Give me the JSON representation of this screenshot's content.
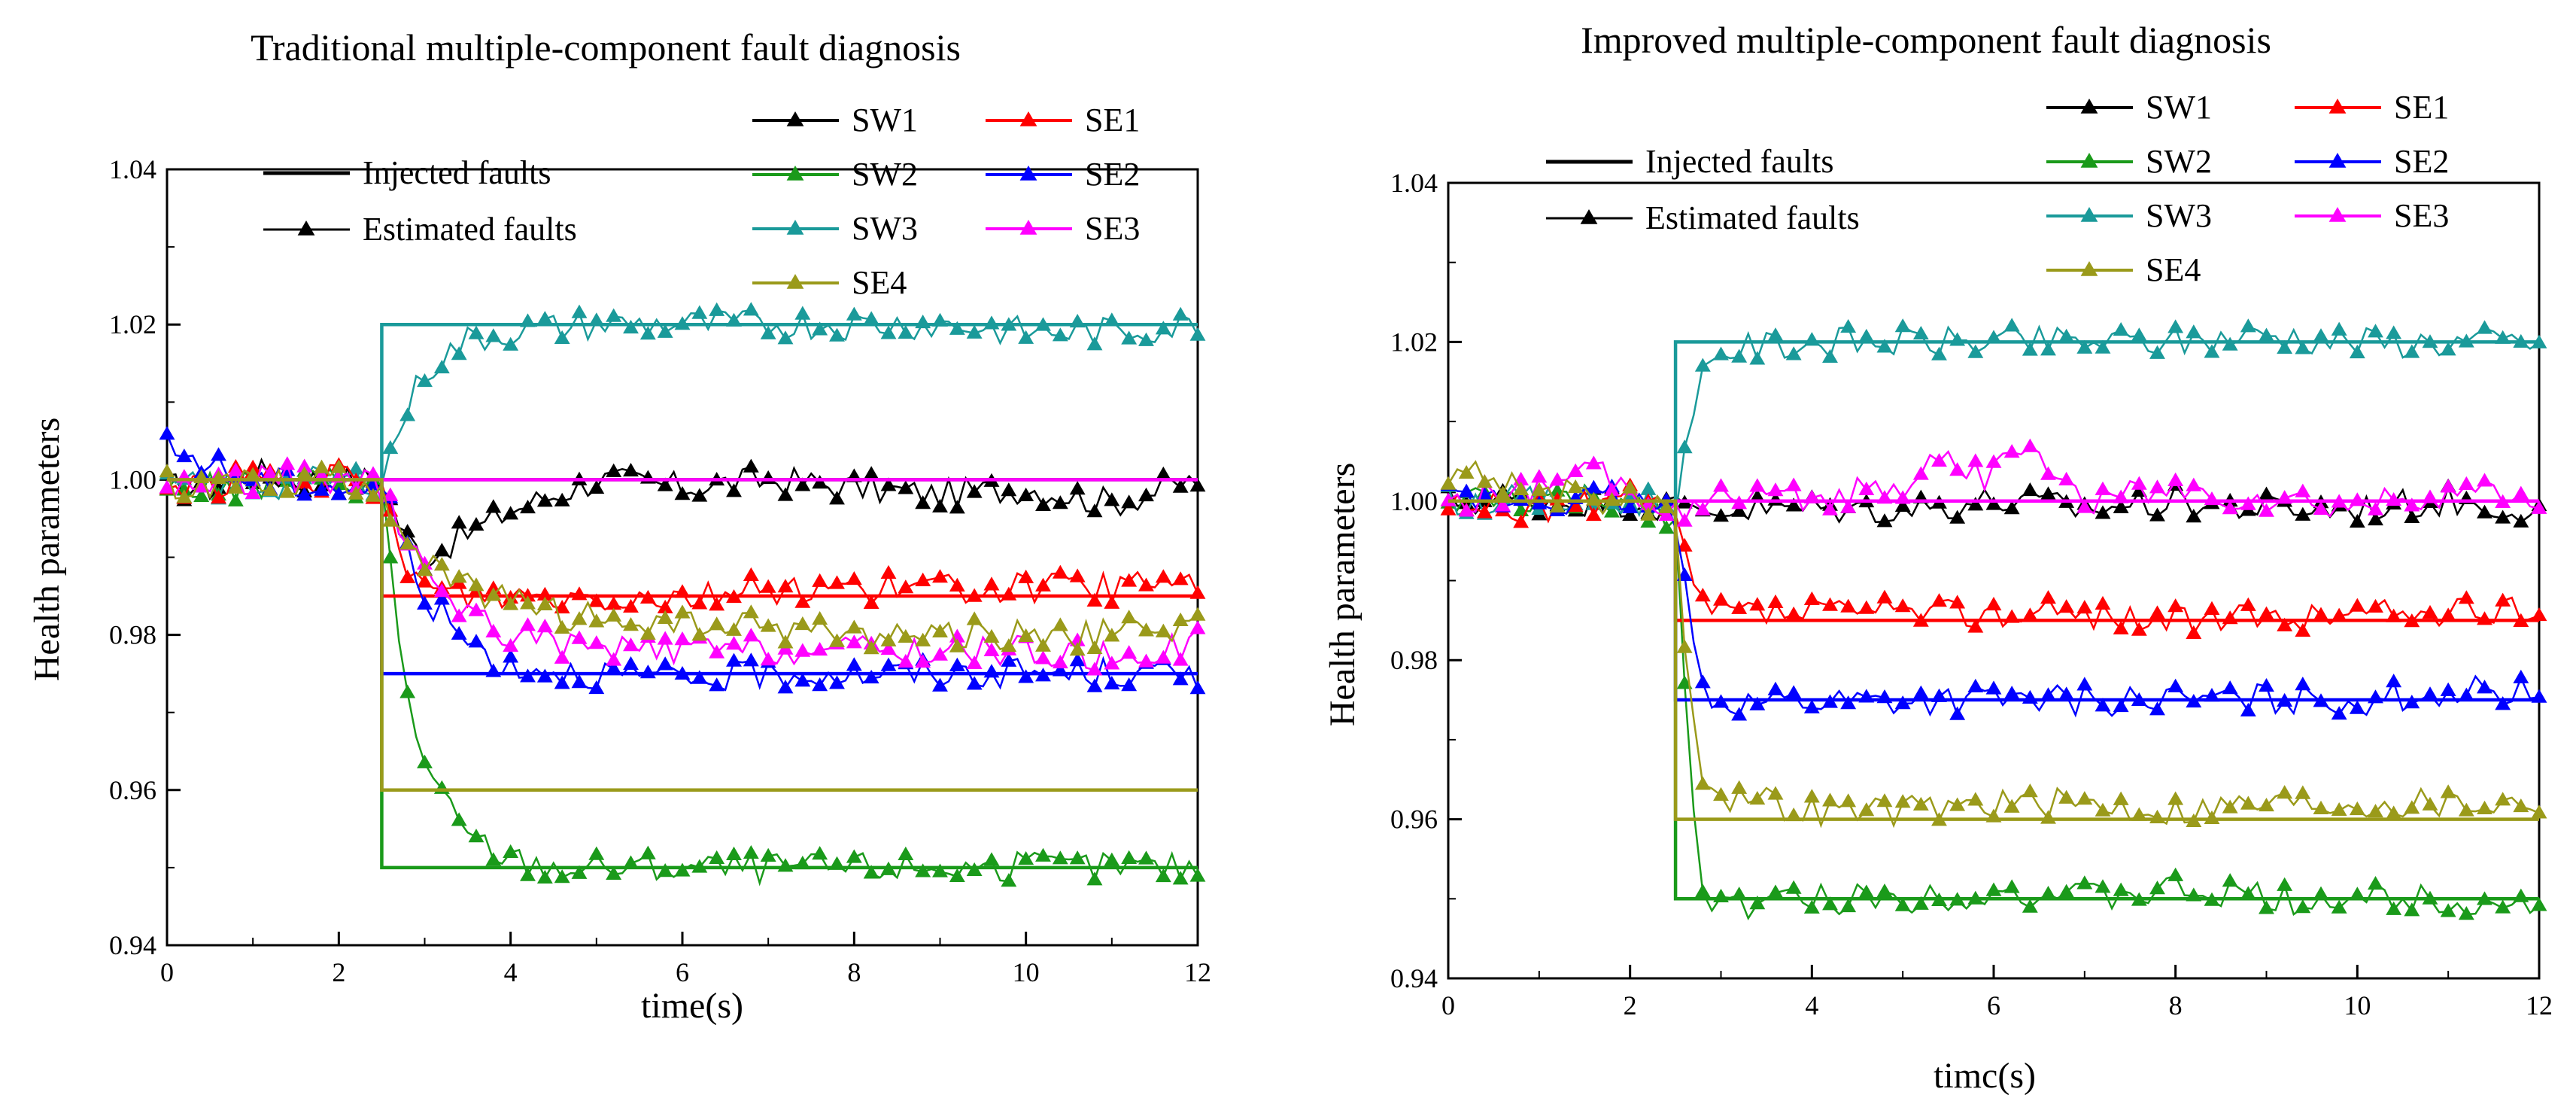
{
  "chart_data": [
    {
      "type": "line",
      "title": "Traditional multiple-component fault diagnosis",
      "xlabel": "time(s)",
      "ylabel": "Health parameters",
      "xlim": [
        0,
        12
      ],
      "ylim": [
        0.94,
        1.04
      ],
      "xticks": [
        "0",
        "2",
        "4",
        "6",
        "8",
        "10",
        "12"
      ],
      "yticks": [
        "0.94",
        "0.96",
        "0.98",
        "1.00",
        "1.02",
        "1.04"
      ],
      "legend_style": {
        "injected": "Injected faults",
        "estimated": "Estimated faults"
      },
      "fault_time": 2.5,
      "series": [
        {
          "name": "SW1",
          "color": "#000000",
          "before": 1.0,
          "after": 1.0,
          "estimate": [
            [
              0,
              0.999
            ],
            [
              0.5,
              0.999
            ],
            [
              1,
              1.001
            ],
            [
              1.5,
              1.0
            ],
            [
              2,
              1.0
            ],
            [
              2.5,
              1.0
            ],
            [
              2.75,
              0.993
            ],
            [
              3,
              0.99
            ],
            [
              3.5,
              0.993
            ],
            [
              4,
              0.996
            ],
            [
              4.5,
              0.998
            ],
            [
              5,
              1.0
            ],
            [
              6,
              0.999
            ],
            [
              7,
              1.0
            ],
            [
              8,
              0.999
            ],
            [
              9,
              0.998
            ],
            [
              10,
              0.999
            ],
            [
              11,
              0.997
            ],
            [
              12,
              1.0
            ]
          ]
        },
        {
          "name": "SW2",
          "color": "#1a9a1a",
          "before": 1.0,
          "after": 0.95,
          "estimate": [
            [
              0,
              0.999
            ],
            [
              1,
              0.999
            ],
            [
              2,
              1.0
            ],
            [
              2.5,
              0.999
            ],
            [
              2.75,
              0.975
            ],
            [
              3,
              0.963
            ],
            [
              3.25,
              0.958
            ],
            [
              3.5,
              0.954
            ],
            [
              4,
              0.951
            ],
            [
              4.5,
              0.95
            ],
            [
              5,
              0.95
            ],
            [
              6,
              0.95
            ],
            [
              7,
              0.95
            ],
            [
              8,
              0.95
            ],
            [
              9,
              0.95
            ],
            [
              10,
              0.95
            ],
            [
              11,
              0.95
            ],
            [
              12,
              0.95
            ]
          ]
        },
        {
          "name": "SW3",
          "color": "#1a9a9a",
          "before": 1.0,
          "after": 1.02,
          "estimate": [
            [
              0,
              0.999
            ],
            [
              1,
              0.999
            ],
            [
              2,
              1.0
            ],
            [
              2.5,
              1.0
            ],
            [
              2.75,
              1.008
            ],
            [
              3,
              1.014
            ],
            [
              3.5,
              1.018
            ],
            [
              4,
              1.019
            ],
            [
              5,
              1.02
            ],
            [
              6,
              1.02
            ],
            [
              7,
              1.02
            ],
            [
              8,
              1.02
            ],
            [
              9,
              1.02
            ],
            [
              10,
              1.019
            ],
            [
              11,
              1.019
            ],
            [
              12,
              1.02
            ]
          ]
        },
        {
          "name": "SE1",
          "color": "#ff0000",
          "before": 1.0,
          "after": 0.985,
          "estimate": [
            [
              0,
              0.999
            ],
            [
              1,
              1.0
            ],
            [
              2,
              1.0
            ],
            [
              2.5,
              0.998
            ],
            [
              2.75,
              0.99
            ],
            [
              3,
              0.986
            ],
            [
              3.5,
              0.985
            ],
            [
              4,
              0.985
            ],
            [
              5,
              0.985
            ],
            [
              6,
              0.985
            ],
            [
              7,
              0.986
            ],
            [
              8,
              0.986
            ],
            [
              9,
              0.986
            ],
            [
              10,
              0.986
            ],
            [
              11,
              0.986
            ],
            [
              12,
              0.987
            ]
          ]
        },
        {
          "name": "SE2",
          "color": "#0000ff",
          "before": 1.0,
          "after": 0.975,
          "estimate": [
            [
              0,
              1.004
            ],
            [
              0.5,
              1.002
            ],
            [
              1,
              1.0
            ],
            [
              2,
              0.999
            ],
            [
              2.5,
              0.999
            ],
            [
              2.75,
              0.992
            ],
            [
              3,
              0.985
            ],
            [
              3.5,
              0.979
            ],
            [
              4,
              0.976
            ],
            [
              5,
              0.975
            ],
            [
              6,
              0.974
            ],
            [
              7,
              0.975
            ],
            [
              8,
              0.975
            ],
            [
              9,
              0.975
            ],
            [
              10,
              0.975
            ],
            [
              11,
              0.975
            ],
            [
              12,
              0.975
            ]
          ]
        },
        {
          "name": "SE3",
          "color": "#ff00ff",
          "before": 1.0,
          "after": 1.0,
          "estimate": [
            [
              0,
              0.999
            ],
            [
              1,
              1.0
            ],
            [
              2,
              1.0
            ],
            [
              2.5,
              0.999
            ],
            [
              2.75,
              0.992
            ],
            [
              3,
              0.988
            ],
            [
              3.5,
              0.983
            ],
            [
              4,
              0.98
            ],
            [
              5,
              0.978
            ],
            [
              6,
              0.978
            ],
            [
              7,
              0.978
            ],
            [
              8,
              0.978
            ],
            [
              9,
              0.978
            ],
            [
              10,
              0.978
            ],
            [
              11,
              0.977
            ],
            [
              12,
              0.979
            ]
          ]
        },
        {
          "name": "SE4",
          "color": "#9a9a1a",
          "before": 1.0,
          "after": 0.96,
          "estimate": [
            [
              0,
              0.999
            ],
            [
              1,
              1.0
            ],
            [
              2,
              1.0
            ],
            [
              2.5,
              0.999
            ],
            [
              2.75,
              0.993
            ],
            [
              3,
              0.989
            ],
            [
              3.5,
              0.986
            ],
            [
              4,
              0.984
            ],
            [
              5,
              0.982
            ],
            [
              6,
              0.981
            ],
            [
              7,
              0.981
            ],
            [
              8,
              0.98
            ],
            [
              9,
              0.98
            ],
            [
              10,
              0.98
            ],
            [
              11,
              0.98
            ],
            [
              12,
              0.981
            ]
          ]
        }
      ]
    },
    {
      "type": "line",
      "title": "Improved multiple-component fault diagnosis",
      "xlabel": "timc(s)",
      "ylabel": "Health parameters",
      "xlim": [
        0,
        12
      ],
      "ylim": [
        0.94,
        1.04
      ],
      "xticks": [
        "0",
        "2",
        "4",
        "6",
        "8",
        "10",
        "12"
      ],
      "yticks": [
        "0.94",
        "0.96",
        "0.98",
        "1.00",
        "1.02",
        "1.04"
      ],
      "legend_style": {
        "injected": "Injected faults",
        "estimated": "Estimated faults"
      },
      "fault_time": 2.5,
      "series": [
        {
          "name": "SW1",
          "color": "#000000",
          "before": 1.0,
          "after": 1.0,
          "estimate": [
            [
              0,
              1.0
            ],
            [
              1,
              1.0
            ],
            [
              2,
              1.0
            ],
            [
              2.5,
              0.999
            ],
            [
              3,
              0.999
            ],
            [
              4,
              0.999
            ],
            [
              5,
              0.999
            ],
            [
              6,
              1.0
            ],
            [
              7,
              0.999
            ],
            [
              8,
              1.0
            ],
            [
              9,
              0.999
            ],
            [
              10,
              0.999
            ],
            [
              11,
              1.0
            ],
            [
              12,
              0.999
            ]
          ]
        },
        {
          "name": "SW2",
          "color": "#1a9a1a",
          "before": 1.0,
          "after": 0.95,
          "estimate": [
            [
              0,
              1.0
            ],
            [
              1,
              1.0
            ],
            [
              2,
              1.0
            ],
            [
              2.5,
              0.998
            ],
            [
              2.65,
              0.965
            ],
            [
              2.8,
              0.952
            ],
            [
              3,
              0.949
            ],
            [
              4,
              0.95
            ],
            [
              5,
              0.95
            ],
            [
              6,
              0.951
            ],
            [
              7,
              0.95
            ],
            [
              8,
              0.951
            ],
            [
              9,
              0.95
            ],
            [
              10,
              0.95
            ],
            [
              11,
              0.95
            ],
            [
              12,
              0.949
            ]
          ]
        },
        {
          "name": "SW3",
          "color": "#1a9a9a",
          "before": 1.0,
          "after": 1.02,
          "estimate": [
            [
              0,
              1.0
            ],
            [
              1,
              1.0
            ],
            [
              2,
              1.0
            ],
            [
              2.5,
              1.0
            ],
            [
              2.65,
              1.008
            ],
            [
              2.8,
              1.015
            ],
            [
              3,
              1.019
            ],
            [
              4,
              1.02
            ],
            [
              5,
              1.02
            ],
            [
              6,
              1.02
            ],
            [
              7,
              1.02
            ],
            [
              8,
              1.02
            ],
            [
              9,
              1.021
            ],
            [
              10,
              1.02
            ],
            [
              11,
              1.02
            ],
            [
              12,
              1.02
            ]
          ]
        },
        {
          "name": "SE1",
          "color": "#ff0000",
          "before": 1.0,
          "after": 0.985,
          "estimate": [
            [
              0,
              0.999
            ],
            [
              1,
              0.999
            ],
            [
              2,
              1.0
            ],
            [
              2.5,
              0.998
            ],
            [
              2.65,
              0.99
            ],
            [
              2.8,
              0.987
            ],
            [
              3,
              0.986
            ],
            [
              4,
              0.986
            ],
            [
              5,
              0.986
            ],
            [
              6,
              0.986
            ],
            [
              7,
              0.986
            ],
            [
              8,
              0.985
            ],
            [
              9,
              0.985
            ],
            [
              10,
              0.986
            ],
            [
              11,
              0.986
            ],
            [
              12,
              0.986
            ]
          ]
        },
        {
          "name": "SE2",
          "color": "#0000ff",
          "before": 1.0,
          "after": 0.975,
          "estimate": [
            [
              0,
              1.0
            ],
            [
              1,
              1.0
            ],
            [
              2,
              1.0
            ],
            [
              2.5,
              0.998
            ],
            [
              2.65,
              0.984
            ],
            [
              2.8,
              0.977
            ],
            [
              3,
              0.975
            ],
            [
              4,
              0.975
            ],
            [
              5,
              0.975
            ],
            [
              6,
              0.975
            ],
            [
              7,
              0.975
            ],
            [
              8,
              0.975
            ],
            [
              9,
              0.975
            ],
            [
              10,
              0.975
            ],
            [
              11,
              0.976
            ],
            [
              12,
              0.976
            ]
          ]
        },
        {
          "name": "SE3",
          "color": "#ff00ff",
          "before": 1.0,
          "after": 1.0,
          "estimate": [
            [
              0,
              1.0
            ],
            [
              1,
              1.001
            ],
            [
              1.6,
              1.004
            ],
            [
              2,
              1.001
            ],
            [
              2.5,
              0.999
            ],
            [
              3,
              1.0
            ],
            [
              4,
              1.0
            ],
            [
              5,
              1.002
            ],
            [
              5.3,
              1.006
            ],
            [
              6,
              1.003
            ],
            [
              6.2,
              1.008
            ],
            [
              7,
              1.0
            ],
            [
              8,
              1.001
            ],
            [
              9,
              1.0
            ],
            [
              10,
              0.999
            ],
            [
              11,
              1.001
            ],
            [
              12,
              1.0
            ]
          ]
        },
        {
          "name": "SE4",
          "color": "#9a9a1a",
          "before": 1.0,
          "after": 0.96,
          "estimate": [
            [
              0,
              1.004
            ],
            [
              0.5,
              1.003
            ],
            [
              1,
              1.001
            ],
            [
              2,
              1.0
            ],
            [
              2.5,
              0.999
            ],
            [
              2.65,
              0.975
            ],
            [
              2.8,
              0.966
            ],
            [
              3,
              0.963
            ],
            [
              3.5,
              0.962
            ],
            [
              4,
              0.961
            ],
            [
              5,
              0.961
            ],
            [
              6,
              0.962
            ],
            [
              7,
              0.962
            ],
            [
              8,
              0.961
            ],
            [
              9,
              0.962
            ],
            [
              10,
              0.962
            ],
            [
              11,
              0.962
            ],
            [
              12,
              0.962
            ]
          ]
        }
      ]
    }
  ]
}
